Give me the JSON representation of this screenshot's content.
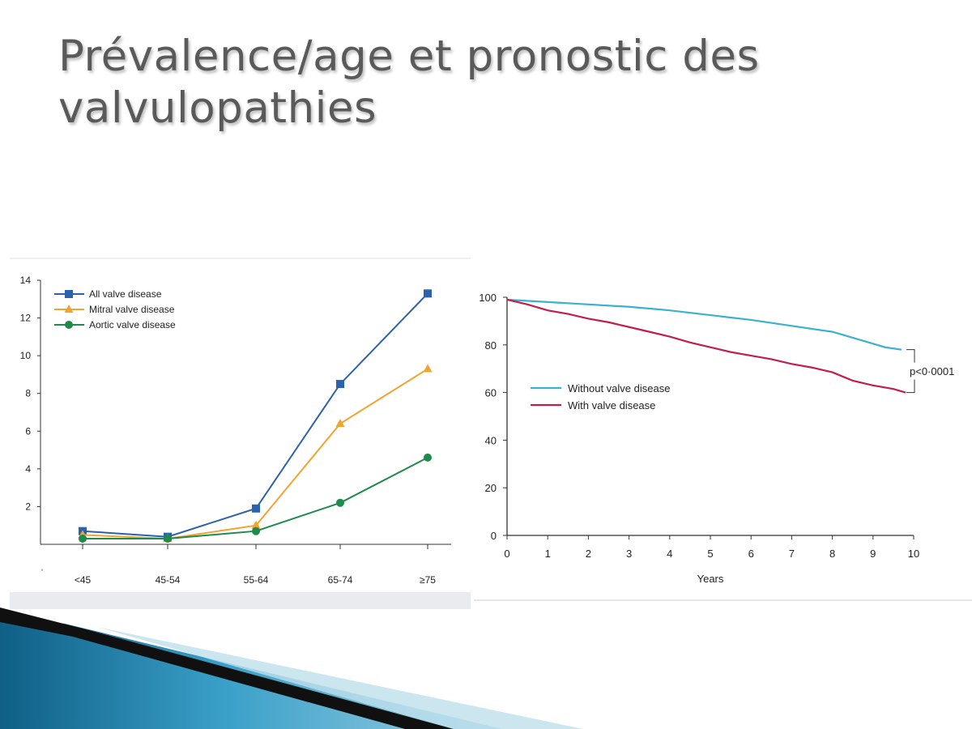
{
  "slide": {
    "title_lines": [
      "Prévalence/age et pronostic des",
      "valvulopathies"
    ]
  },
  "colors": {
    "all": "#2c62ad",
    "mitral": "#f0a431",
    "aortic": "#1f8a4c",
    "without": "#3bb1d1",
    "with": "#c01f4e",
    "axis": "#333333"
  },
  "chart_data": [
    {
      "type": "line",
      "categories": [
        "<45",
        "45-54",
        "55-64",
        "65-74",
        "≥75"
      ],
      "y_ticks": [
        "2",
        "4",
        "6",
        "8",
        "10",
        "12",
        "14"
      ],
      "ylim": [
        0,
        14
      ],
      "series": [
        {
          "name": "All valve disease",
          "marker": "square",
          "values": [
            0.7,
            0.4,
            1.9,
            8.5,
            13.3
          ]
        },
        {
          "name": "Mitral valve disease",
          "marker": "triangle",
          "values": [
            0.5,
            0.3,
            1.0,
            6.4,
            9.3
          ]
        },
        {
          "name": "Aortic valve disease",
          "marker": "circle",
          "values": [
            0.3,
            0.3,
            0.7,
            2.2,
            4.6
          ]
        }
      ],
      "legend_position": "top-left",
      "stray_tick_label": "'"
    },
    {
      "type": "line",
      "xlabel": "Years",
      "x_ticks": [
        "0",
        "1",
        "2",
        "3",
        "4",
        "5",
        "6",
        "7",
        "8",
        "9",
        "10"
      ],
      "y_ticks": [
        "0",
        "20",
        "40",
        "60",
        "80",
        "100"
      ],
      "xlim": [
        0,
        10
      ],
      "ylim": [
        0,
        100
      ],
      "series": [
        {
          "name": "Without valve disease",
          "x": [
            0,
            1,
            2,
            3,
            4,
            5,
            6,
            7,
            8,
            8.5,
            9,
            9.3,
            9.7
          ],
          "y": [
            99,
            98,
            97,
            96,
            94.5,
            92.5,
            90.5,
            88,
            85.5,
            83,
            80.5,
            79,
            78
          ]
        },
        {
          "name": "With valve disease",
          "x": [
            0,
            0.5,
            1,
            1.5,
            2,
            2.5,
            3,
            3.5,
            4,
            4.5,
            5,
            5.5,
            6,
            6.5,
            7,
            7.5,
            8,
            8.5,
            9,
            9.5,
            9.8
          ],
          "y": [
            99,
            97,
            94.5,
            93,
            91,
            89.5,
            87.5,
            85.5,
            83.5,
            81,
            79,
            77,
            75.5,
            74,
            72,
            70.5,
            68.5,
            65,
            63,
            61.5,
            60
          ]
        }
      ],
      "annotation": "p<0·0001",
      "legend_position": "upper-middle"
    }
  ]
}
